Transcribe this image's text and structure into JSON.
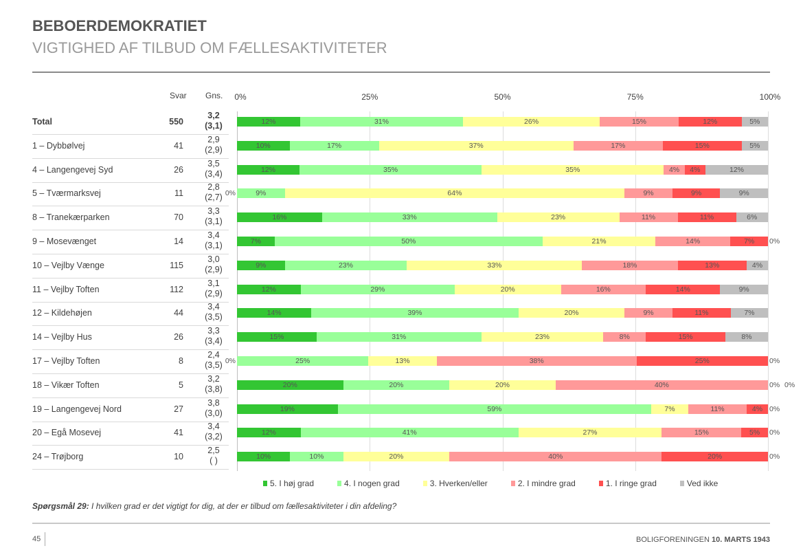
{
  "header": {
    "title": "BEBOERDEMOKRATIET",
    "subtitle": "VIGTIGHED AF TILBUD OM FÆLLESAKTIVITETER"
  },
  "table": {
    "col_svar": "Svar",
    "col_gns": "Gns."
  },
  "chart_data": {
    "type": "bar",
    "orientation": "horizontal-stacked-100",
    "xlim": [
      0,
      100
    ],
    "x_ticks": [
      "0%",
      "25%",
      "50%",
      "75%",
      "100%"
    ],
    "grid": true,
    "legend_position": "bottom",
    "series_names": [
      "5. I høj grad",
      "4. I nogen grad",
      "3. Hverken/eller",
      "2. I mindre grad",
      "1. I ringe grad",
      "Ved ikke"
    ],
    "colors": [
      "#33c633",
      "#99ff99",
      "#ffff99",
      "#ff9999",
      "#ff5050",
      "#bfbfbf"
    ],
    "rows": [
      {
        "label": "Total",
        "svar": "550",
        "gns": "3,2",
        "gns_prev": "(3,1)",
        "values": [
          12,
          31,
          26,
          15,
          12,
          5
        ]
      },
      {
        "label": "1 – Dybbølvej",
        "svar": "41",
        "gns": "2,9",
        "gns_prev": "(2,9)",
        "values": [
          10,
          17,
          37,
          17,
          15,
          5
        ]
      },
      {
        "label": "4 – Langengevej Syd",
        "svar": "26",
        "gns": "3,5",
        "gns_prev": "(3,4)",
        "values": [
          12,
          35,
          35,
          4,
          4,
          12
        ]
      },
      {
        "label": "5 – Tværmarksvej",
        "svar": "11",
        "gns": "2,8",
        "gns_prev": "(2,7)",
        "values": [
          0,
          9,
          64,
          9,
          9,
          9
        ]
      },
      {
        "label": "8 – Tranekærparken",
        "svar": "70",
        "gns": "3,3",
        "gns_prev": "(3,1)",
        "values": [
          16,
          33,
          23,
          11,
          11,
          6
        ]
      },
      {
        "label": "9 – Mosevænget",
        "svar": "14",
        "gns": "3,4",
        "gns_prev": "(3,1)",
        "values": [
          7,
          50,
          21,
          14,
          7,
          0
        ]
      },
      {
        "label": "10 – Vejlby Vænge",
        "svar": "115",
        "gns": "3,0",
        "gns_prev": "(2,9)",
        "values": [
          9,
          23,
          33,
          18,
          13,
          4
        ]
      },
      {
        "label": "11 – Vejlby Toften",
        "svar": "112",
        "gns": "3,1",
        "gns_prev": "(2,9)",
        "values": [
          12,
          29,
          20,
          16,
          14,
          9
        ]
      },
      {
        "label": "12 – Kildehøjen",
        "svar": "44",
        "gns": "3,4",
        "gns_prev": "(3,5)",
        "values": [
          14,
          39,
          20,
          9,
          11,
          7
        ]
      },
      {
        "label": "14 – Vejlby Hus",
        "svar": "26",
        "gns": "3,3",
        "gns_prev": "(3,4)",
        "values": [
          15,
          31,
          23,
          8,
          15,
          8
        ]
      },
      {
        "label": "17 – Vejlby Toften",
        "svar": "8",
        "gns": "2,4",
        "gns_prev": "(3,5)",
        "values": [
          0,
          25,
          13,
          38,
          25,
          0
        ]
      },
      {
        "label": "18 – Vikær Toften",
        "svar": "5",
        "gns": "3,2",
        "gns_prev": "(3,8)",
        "values": [
          20,
          20,
          20,
          40,
          0,
          0
        ]
      },
      {
        "label": "19 – Langengevej Nord",
        "svar": "27",
        "gns": "3,8",
        "gns_prev": "(3,0)",
        "values": [
          19,
          59,
          7,
          11,
          4,
          0
        ]
      },
      {
        "label": "20 – Egå Mosevej",
        "svar": "41",
        "gns": "3,4",
        "gns_prev": "(3,2)",
        "values": [
          12,
          41,
          27,
          15,
          5,
          0
        ]
      },
      {
        "label": "24 – Trøjborg",
        "svar": "10",
        "gns": "2,5",
        "gns_prev": "(   )",
        "values": [
          10,
          10,
          20,
          40,
          20,
          0
        ]
      }
    ]
  },
  "question": {
    "label": "Spørgsmål 29:",
    "text": " I hvilken grad er det vigtigt for dig, at der er tilbud om fællesaktiviteter i din afdeling?"
  },
  "footer": {
    "page": "45",
    "org": "BOLIGFORENINGEN ",
    "date": "10. MARTS 1943"
  }
}
